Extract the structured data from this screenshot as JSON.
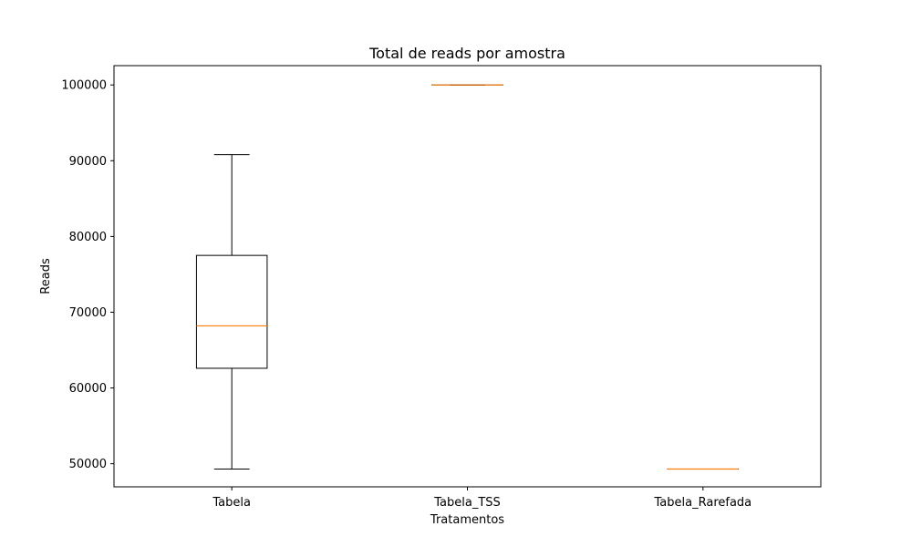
{
  "chart_data": {
    "type": "box",
    "title": "Total de reads por amostra",
    "xlabel": "Tratamentos",
    "ylabel": "Reads",
    "ylim": [
      46950,
      102550
    ],
    "yticks": [
      50000,
      60000,
      70000,
      80000,
      90000,
      100000
    ],
    "categories": [
      "Tabela",
      "Tabela_TSS",
      "Tabela_Rarefada"
    ],
    "boxes": [
      {
        "category": "Tabela",
        "whisker_low": 49300,
        "q1": 62600,
        "median": 68200,
        "q3": 77500,
        "whisker_high": 90800
      },
      {
        "category": "Tabela_TSS",
        "whisker_low": 100000,
        "q1": 100000,
        "median": 100000,
        "q3": 100000,
        "whisker_high": 100000
      },
      {
        "category": "Tabela_Rarefada",
        "whisker_low": 49300,
        "q1": 49300,
        "median": 49300,
        "q3": 49300,
        "whisker_high": 49300
      }
    ],
    "grid": false,
    "colors": {
      "box": "#000000",
      "median": "#ff7f0e"
    }
  }
}
